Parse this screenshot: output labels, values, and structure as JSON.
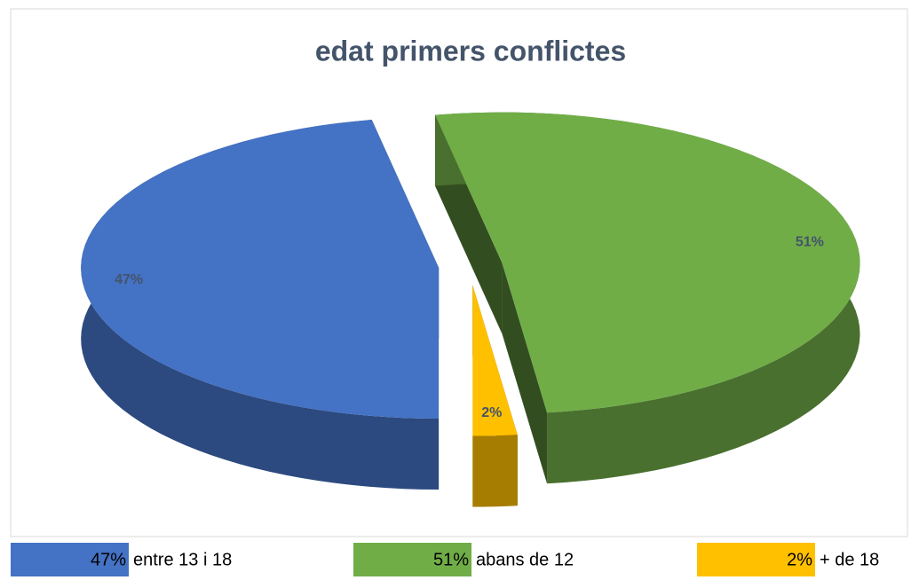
{
  "chart_data": {
    "type": "pie3d",
    "title": "edat primers conflictes",
    "categories": [
      "entre 13 i 18",
      "abans de 12",
      "+ de 18"
    ],
    "values": [
      47,
      51,
      2
    ],
    "value_labels": [
      "47%",
      "51%",
      "2%"
    ],
    "colors": [
      "#4472c4",
      "#70ad47",
      "#ffc000"
    ],
    "exploded": true
  }
}
